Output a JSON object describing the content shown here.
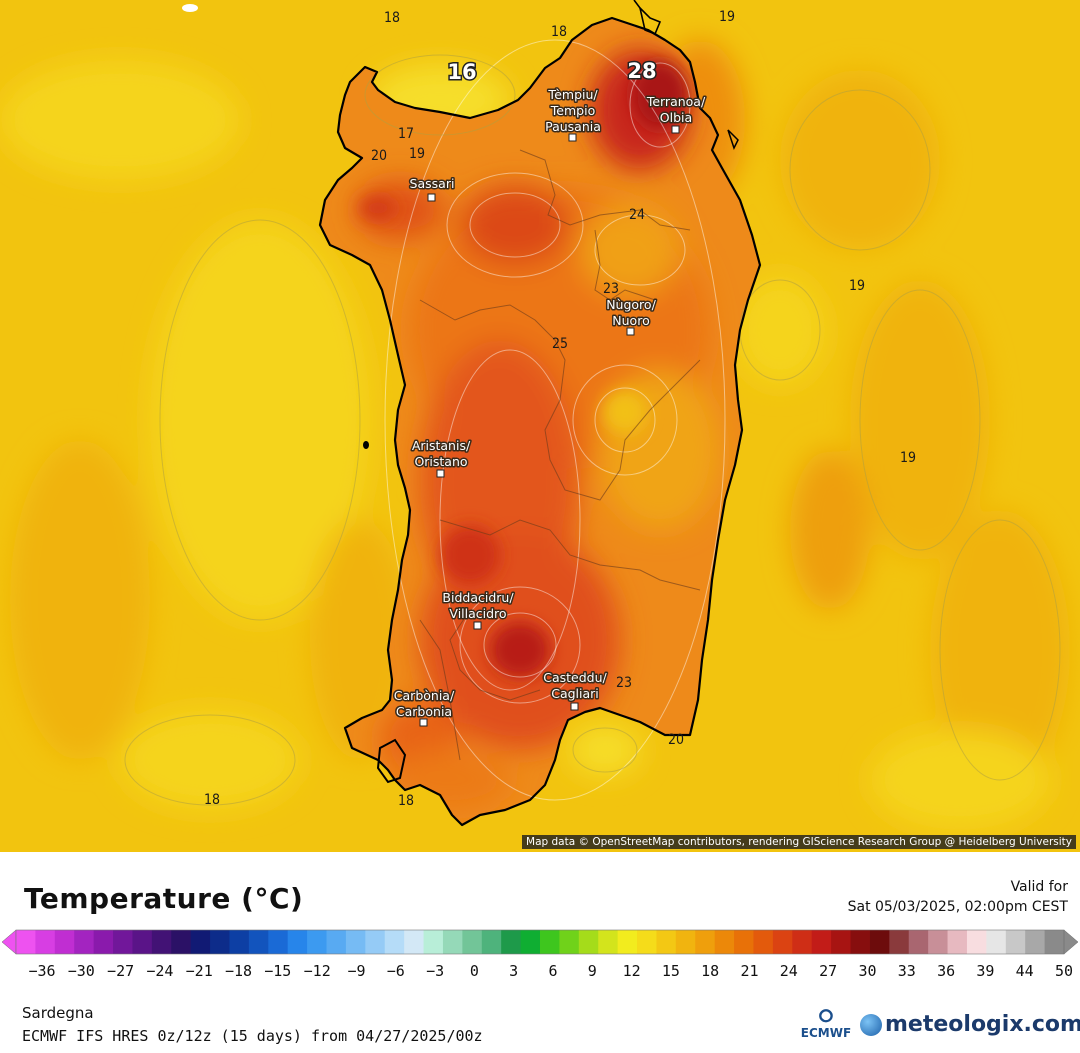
{
  "map": {
    "attribution": "Map data © OpenStreetMap contributors, rendering GIScience Research Group @ Heidelberg University",
    "cities": [
      {
        "line1": "Tèmpiu/",
        "line2": "Tempio",
        "line3": "Pausania"
      },
      {
        "line1": "Terranoa/",
        "line2": "Olbia"
      },
      {
        "line1": "Sassari"
      },
      {
        "line1": "Nùgoro/",
        "line2": "Nuoro"
      },
      {
        "line1": "Aristanis/",
        "line2": "Oristano"
      },
      {
        "line1": "Biddacidru/",
        "line2": "Villacidro"
      },
      {
        "line1": "Casteddu/",
        "line2": "Cagliari"
      },
      {
        "line1": "Carbònia/",
        "line2": "Carbonia"
      }
    ],
    "highlight_values": [
      "16",
      "28"
    ],
    "isoline_labels": [
      "18",
      "18",
      "19",
      "17",
      "20",
      "19",
      "24",
      "23",
      "19",
      "25",
      "19",
      "23",
      "20",
      "18",
      "18"
    ],
    "colors": {
      "sea": "#f2c40f",
      "warm_sea": "#f0b30c",
      "land_orange": "#ee7d18",
      "land_hot": "#e04a14",
      "land_peak": "#b81c12",
      "coast": "#000000"
    }
  },
  "legend": {
    "title": "Temperature (°C)",
    "valid_for_label": "Valid for",
    "valid_time": "Sat 05/03/2025, 02:00pm CEST",
    "ticks": [
      "−36",
      "−30",
      "−27",
      "−24",
      "−21",
      "−18",
      "−15",
      "−12",
      "−9",
      "−6",
      "−3",
      "0",
      "3",
      "6",
      "9",
      "12",
      "15",
      "18",
      "21",
      "24",
      "27",
      "30",
      "33",
      "36",
      "39",
      "44",
      "50"
    ],
    "colors": [
      "#ee52f0",
      "#d73ee3",
      "#c02ed2",
      "#a324c0",
      "#8a1aac",
      "#71179a",
      "#5a1488",
      "#421275",
      "#2b1166",
      "#111a74",
      "#0d2c8a",
      "#0d3fa4",
      "#1254bd",
      "#1a6ad6",
      "#2785ea",
      "#3c9af0",
      "#58aaf2",
      "#76bbf4",
      "#95cbf6",
      "#b5dcf8",
      "#d3e8f6",
      "#b8eed8",
      "#95d9b8",
      "#72c598",
      "#4eb37c",
      "#1e9a4a",
      "#0fae32",
      "#3ec61e",
      "#70d21a",
      "#a5dc1a",
      "#d3e41c",
      "#f2ec1e",
      "#f5dc1a",
      "#f3c814",
      "#f1b40f",
      "#ef9f0c",
      "#ec8809",
      "#e87108",
      "#e35a0c",
      "#db4312",
      "#cf2e16",
      "#c21c18",
      "#a71412",
      "#870e0e",
      "#6d0c0c",
      "#8a3a3c",
      "#a96670",
      "#c88f98",
      "#e7b9c0",
      "#f8dde0",
      "#e6e6e6",
      "#c8c8c8",
      "#a8a8a8",
      "#8a8a8a"
    ]
  },
  "footer": {
    "region": "Sardegna",
    "model": "ECMWF IFS HRES 0z/12z (15 days) from 04/27/2025/00z",
    "ecmwf_logo_text": "ECMWF",
    "brand": "meteologix.com"
  }
}
